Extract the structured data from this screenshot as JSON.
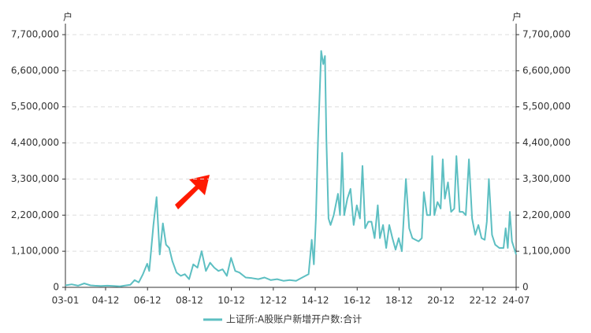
{
  "chart_data": {
    "type": "line",
    "y_label": "户",
    "y2_label": "户",
    "x": [
      2003.0,
      2003.3,
      2003.6,
      2003.9,
      2004.2,
      2004.4,
      2004.7,
      2005.0,
      2005.3,
      2005.6,
      2005.9,
      2006.1,
      2006.3,
      2006.5,
      2006.7,
      2006.9,
      2007.0,
      2007.2,
      2007.35,
      2007.5,
      2007.65,
      2007.8,
      2007.95,
      2008.1,
      2008.3,
      2008.5,
      2008.7,
      2008.9,
      2009.1,
      2009.3,
      2009.5,
      2009.7,
      2009.9,
      2010.1,
      2010.3,
      2010.5,
      2010.7,
      2010.9,
      2011.1,
      2011.3,
      2011.6,
      2011.9,
      2012.2,
      2012.5,
      2012.8,
      2013.1,
      2013.4,
      2013.7,
      2014.0,
      2014.3,
      2014.6,
      2014.75,
      2014.85,
      2014.95,
      2015.05,
      2015.2,
      2015.3,
      2015.38,
      2015.45,
      2015.55,
      2015.65,
      2015.8,
      2016.0,
      2016.1,
      2016.2,
      2016.3,
      2016.45,
      2016.6,
      2016.75,
      2016.9,
      2017.05,
      2017.17,
      2017.3,
      2017.45,
      2017.6,
      2017.75,
      2017.9,
      2018.0,
      2018.15,
      2018.3,
      2018.45,
      2018.6,
      2018.75,
      2018.9,
      2019.05,
      2019.24,
      2019.4,
      2019.55,
      2019.7,
      2019.85,
      2020.0,
      2020.1,
      2020.25,
      2020.4,
      2020.5,
      2020.6,
      2020.75,
      2020.9,
      2021.0,
      2021.1,
      2021.25,
      2021.4,
      2021.55,
      2021.65,
      2021.8,
      2021.95,
      2022.1,
      2022.25,
      2022.4,
      2022.55,
      2022.7,
      2022.85,
      2023.0,
      2023.1,
      2023.2,
      2023.35,
      2023.5,
      2023.7,
      2023.9,
      2024.0,
      2024.1,
      2024.2,
      2024.3,
      2024.5
    ],
    "series": [
      {
        "name": "上证所:A股账户新增开户数:合计",
        "color": "#5dbfc2",
        "values": [
          60000,
          90000,
          50000,
          120000,
          60000,
          50000,
          40000,
          50000,
          40000,
          30000,
          60000,
          80000,
          220000,
          150000,
          400000,
          720000,
          500000,
          1900000,
          2750000,
          1000000,
          1950000,
          1300000,
          1200000,
          800000,
          450000,
          350000,
          400000,
          250000,
          700000,
          600000,
          1100000,
          500000,
          750000,
          600000,
          500000,
          550000,
          350000,
          900000,
          500000,
          450000,
          300000,
          280000,
          250000,
          300000,
          220000,
          250000,
          200000,
          220000,
          200000,
          300000,
          400000,
          1450000,
          700000,
          2100000,
          4500000,
          7200000,
          6800000,
          7050000,
          4500000,
          2100000,
          1900000,
          2200000,
          2850000,
          2200000,
          4100000,
          2200000,
          2700000,
          3000000,
          1900000,
          2500000,
          2100000,
          3700000,
          1800000,
          2000000,
          2000000,
          1500000,
          2500000,
          1500000,
          1900000,
          1200000,
          1900000,
          1500000,
          1150000,
          1500000,
          1100000,
          3300000,
          1800000,
          1500000,
          1450000,
          1400000,
          1500000,
          2900000,
          2200000,
          2200000,
          4000000,
          2200000,
          2600000,
          2400000,
          3900000,
          2700000,
          3200000,
          2300000,
          2400000,
          4000000,
          2300000,
          2300000,
          2200000,
          3900000,
          2100000,
          1600000,
          1900000,
          1500000,
          1450000,
          2000000,
          3300000,
          1600000,
          1300000,
          1200000,
          1200000,
          1800000,
          1200000,
          2300000,
          1400000,
          1000000
        ]
      }
    ],
    "xlim": [
      2003.0,
      2024.5
    ],
    "xticks": [
      {
        "value": 2003.0,
        "label": "03-01"
      },
      {
        "value": 2004.917,
        "label": "04-12"
      },
      {
        "value": 2006.917,
        "label": "06-12"
      },
      {
        "value": 2008.917,
        "label": "08-12"
      },
      {
        "value": 2010.917,
        "label": "10-12"
      },
      {
        "value": 2012.917,
        "label": "12-12"
      },
      {
        "value": 2014.917,
        "label": "14-12"
      },
      {
        "value": 2016.917,
        "label": "16-12"
      },
      {
        "value": 2018.917,
        "label": "18-12"
      },
      {
        "value": 2020.917,
        "label": "20-12"
      },
      {
        "value": 2022.917,
        "label": "22-12"
      },
      {
        "value": 2024.5,
        "label": "24-07"
      }
    ],
    "ylim": [
      0,
      7700000
    ],
    "yticks": [
      0,
      {
        "value": 1100000,
        "label": "1,100,000"
      },
      {
        "value": 2200000,
        "label": "2,200,000"
      },
      {
        "value": 3300000,
        "label": "3,300,000"
      },
      {
        "value": 4400000,
        "label": "4,400,000"
      },
      {
        "value": 5500000,
        "label": "5,500,000"
      },
      {
        "value": 6600000,
        "label": "6,600,000"
      },
      {
        "value": 7700000,
        "label": "7,700,000"
      }
    ],
    "y2lim": [
      0,
      7700000
    ],
    "y2ticks": [
      0,
      {
        "value": 1100000,
        "label": "1,100,000"
      },
      {
        "value": 2200000,
        "label": "2,200,000"
      },
      {
        "value": 3300000,
        "label": "3,300,000"
      },
      {
        "value": 4400000,
        "label": "4,400,000"
      },
      {
        "value": 5500000,
        "label": "5,500,000"
      },
      {
        "value": 6600000,
        "label": "6,600,000"
      },
      {
        "value": 7700000,
        "label": "7,700,000"
      }
    ],
    "grid": true
  }
}
